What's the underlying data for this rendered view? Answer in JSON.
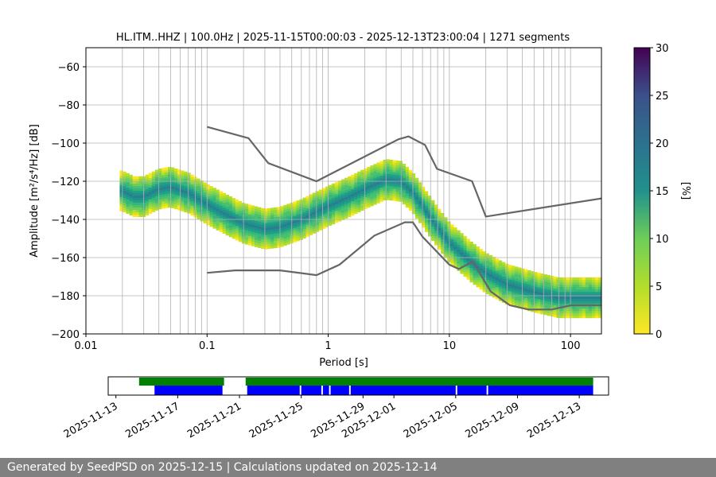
{
  "footer": {
    "text": "Generated by SeedPSD on 2025-12-15 | Calculations updated on 2025-12-14"
  },
  "chart_data": {
    "type": "heatmap",
    "title": "HL.ITM..HHZ | 100.0Hz | 2025-11-15T00:00:03 - 2025-12-13T23:00:04 | 1271 segments",
    "xlabel": "Period [s]",
    "ylabel": "Amplitude [m²/s⁴/Hz] [dB]",
    "x_scale": "log",
    "xlim": [
      0.01,
      180
    ],
    "ylim": [
      -200,
      -50
    ],
    "x_ticks": [
      0.01,
      0.1,
      1,
      10,
      100
    ],
    "x_tick_labels": [
      "0.01",
      "0.1",
      "1",
      "10",
      "100"
    ],
    "y_ticks": [
      -200,
      -180,
      -160,
      -140,
      -120,
      -100,
      -80,
      -60
    ],
    "y_tick_labels": [
      "−200",
      "−180",
      "−160",
      "−140",
      "−120",
      "−100",
      "−80",
      "−60"
    ],
    "grid": true,
    "colorbar": {
      "label": "[%]",
      "range": [
        0,
        30
      ],
      "ticks": [
        0,
        5,
        10,
        15,
        20,
        25,
        30
      ],
      "colormap": "viridis_r"
    },
    "mode_curve": {
      "name": "mode",
      "x": [
        0.02,
        0.025,
        0.03,
        0.04,
        0.05,
        0.07,
        0.1,
        0.15,
        0.2,
        0.3,
        0.4,
        0.6,
        0.8,
        1.0,
        1.5,
        2.0,
        3.0,
        4.0,
        5.0,
        6.0,
        8.0,
        10,
        15,
        20,
        30,
        50,
        80,
        120,
        180
      ],
      "y": [
        -125,
        -128,
        -128,
        -124,
        -123,
        -126,
        -132,
        -138,
        -142,
        -145,
        -144,
        -140,
        -136,
        -133,
        -128,
        -124,
        -119,
        -120,
        -126,
        -133,
        -144,
        -152,
        -162,
        -168,
        -174,
        -178,
        -181,
        -181,
        -181
      ]
    },
    "upper_curve": {
      "x": [
        0.1,
        0.22,
        0.32,
        0.8,
        3.8,
        4.6,
        6.3,
        7.9,
        15.4,
        20,
        180
      ],
      "y": [
        -91.5,
        -97.4,
        -110.5,
        -120,
        -98,
        -96.5,
        -101,
        -113.5,
        -120,
        -138.5,
        -129
      ]
    },
    "lower_curve": {
      "x": [
        0.1,
        0.17,
        0.4,
        0.8,
        1.24,
        2.4,
        4.3,
        5.0,
        6.0,
        10,
        12,
        15.6,
        21.9,
        31.6,
        45,
        70,
        101,
        154,
        180
      ],
      "y": [
        -168,
        -166.7,
        -166.7,
        -169.2,
        -163.7,
        -148.5,
        -141.5,
        -141.5,
        -149.1,
        -163.7,
        -166,
        -162,
        -177.7,
        -185,
        -187.2,
        -187.2,
        -185,
        -185,
        -185
      ]
    },
    "availability": {
      "x_tick_labels": [
        "2025-11-13",
        "2025-11-17",
        "2025-11-21",
        "2025-11-25",
        "2025-11-29",
        "2025-12-01",
        "2025-12-05",
        "2025-12-09",
        "2025-12-13"
      ],
      "x_tick_dates": [
        "2025-11-13",
        "2025-11-17",
        "2025-11-21",
        "2025-11-25",
        "2025-11-29",
        "2025-12-01",
        "2025-12-05",
        "2025-12-09",
        "2025-12-13"
      ],
      "range": [
        "2025-11-12.5",
        "2025-12-14.9"
      ],
      "data_segments": [
        [
          "2025-11-14.5",
          "2025-11-20.0"
        ],
        [
          "2025-11-21.4",
          "2025-12-13.9"
        ]
      ],
      "psd_segments": [
        [
          "2025-11-15.5",
          "2025-11-19.9"
        ],
        [
          "2025-11-21.5",
          "2025-11-24.9"
        ],
        [
          "2025-11-25.0",
          "2025-11-26.3"
        ],
        [
          "2025-11-26.4",
          "2025-11-26.8"
        ],
        [
          "2025-11-26.9",
          "2025-11-28.1"
        ],
        [
          "2025-11-28.2",
          "2025-12-05.0"
        ],
        [
          "2025-12-05.1",
          "2025-12-07.0"
        ],
        [
          "2025-12-07.1",
          "2025-12-13.9"
        ]
      ],
      "data_color": "#008000",
      "psd_color": "#0000ff"
    }
  }
}
